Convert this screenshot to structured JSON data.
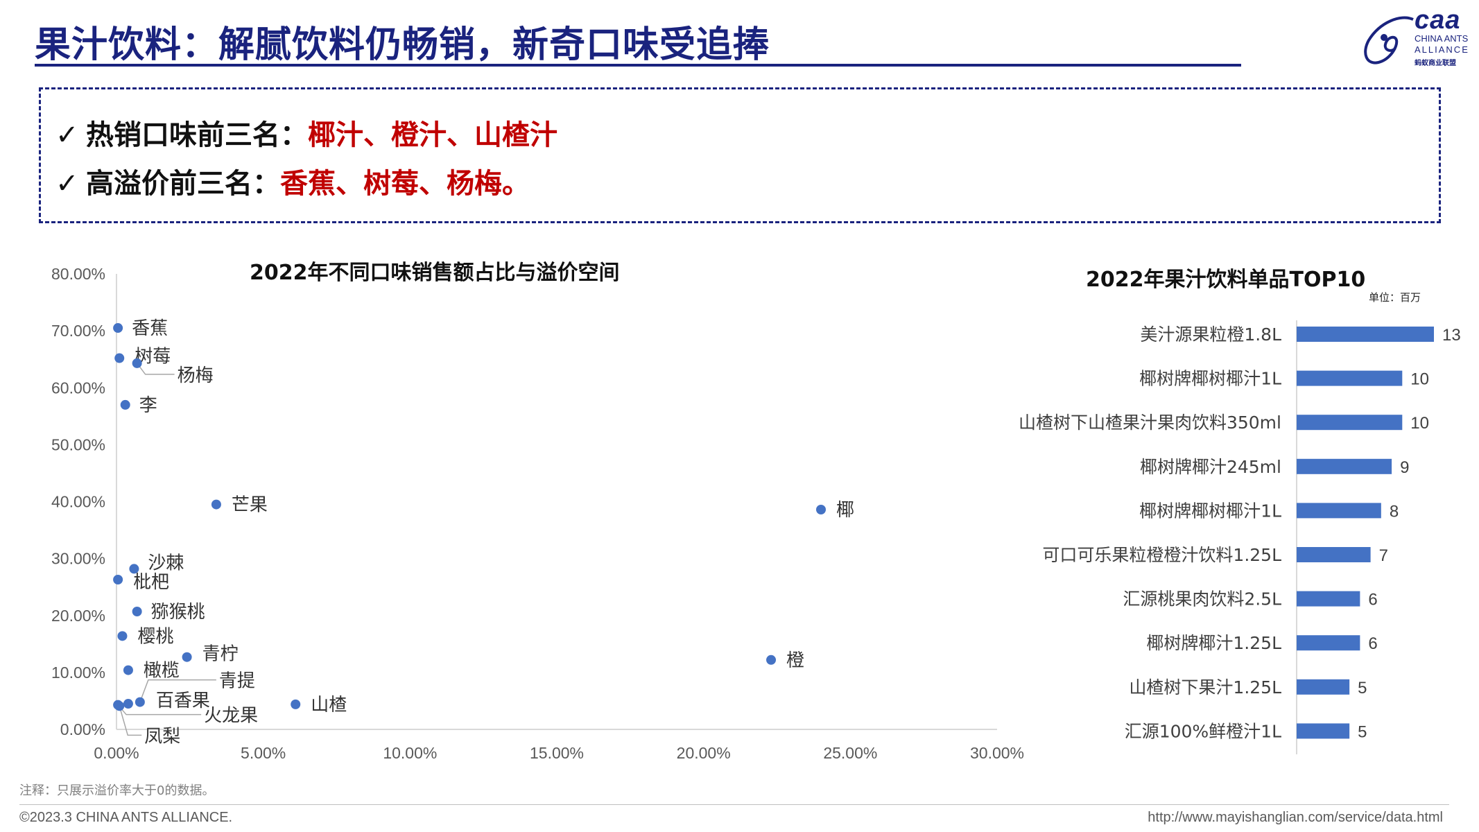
{
  "header": {
    "title": "果汁饮料：解腻饮料仍畅销，新奇口味受追捧",
    "logo_text": "caa",
    "logo_line1": "CHINA ANTS",
    "logo_line2": "ALLIANCE",
    "logo_line3": "蚂蚁商业联盟"
  },
  "highlights": [
    {
      "check": "✓",
      "label": "热销口味前三名：",
      "value": "椰汁、橙汁、山楂汁"
    },
    {
      "check": "✓",
      "label": "高溢价前三名：",
      "value": "香蕉、树莓、杨梅。"
    }
  ],
  "colors": {
    "accent": "#1a237e",
    "highlight_red": "#c00000",
    "point": "#4472c4",
    "bar": "#4472c4"
  },
  "chart_data": [
    {
      "type": "scatter",
      "title": "2022年不同口味销售额占比与溢价空间",
      "xlabel": "",
      "ylabel": "",
      "xlim": [
        0,
        30
      ],
      "ylim": [
        0,
        80
      ],
      "x_ticks": [
        "0.00%",
        "5.00%",
        "10.00%",
        "15.00%",
        "20.00%",
        "25.00%",
        "30.00%"
      ],
      "y_ticks": [
        "0.00%",
        "10.00%",
        "20.00%",
        "30.00%",
        "40.00%",
        "50.00%",
        "60.00%",
        "70.00%",
        "80.00%"
      ],
      "points": [
        {
          "label": "香蕉",
          "x": 0.05,
          "y": 70.5
        },
        {
          "label": "树莓",
          "x": 0.1,
          "y": 65.2
        },
        {
          "label": "杨梅",
          "x": 0.7,
          "y": 64.3
        },
        {
          "label": "李",
          "x": 0.3,
          "y": 57.0
        },
        {
          "label": "芒果",
          "x": 3.4,
          "y": 39.5
        },
        {
          "label": "椰",
          "x": 24.0,
          "y": 38.6
        },
        {
          "label": "沙棘",
          "x": 0.6,
          "y": 28.2
        },
        {
          "label": "枇杷",
          "x": 0.05,
          "y": 26.3
        },
        {
          "label": "猕猴桃",
          "x": 0.7,
          "y": 20.7
        },
        {
          "label": "樱桃",
          "x": 0.2,
          "y": 16.4
        },
        {
          "label": "青柠",
          "x": 2.4,
          "y": 12.7
        },
        {
          "label": "橙",
          "x": 22.3,
          "y": 12.2
        },
        {
          "label": "橄榄",
          "x": 0.4,
          "y": 10.4
        },
        {
          "label": "青提",
          "x": 0.8,
          "y": 4.8
        },
        {
          "label": "百香果",
          "x": 0.4,
          "y": 4.5
        },
        {
          "label": "山楂",
          "x": 6.1,
          "y": 4.4
        },
        {
          "label": "火龙果",
          "x": 0.05,
          "y": 4.3
        },
        {
          "label": "凤梨",
          "x": 0.1,
          "y": 4.1
        }
      ]
    },
    {
      "type": "bar",
      "orientation": "horizontal",
      "title": "2022年果汁饮料单品TOP10",
      "unit": "单位：百万",
      "xlim": [
        0,
        13
      ],
      "categories": [
        "美汁源果粒橙1.8L",
        "椰树牌椰树椰汁1L",
        "山楂树下山楂果汁果肉饮料350ml",
        "椰树牌椰汁245ml",
        "椰树牌椰树椰汁1L",
        "可口可乐果粒橙橙汁饮料1.25L",
        "汇源桃果肉饮料2.5L",
        "椰树牌椰汁1.25L",
        "山楂树下果汁1.25L",
        "汇源100%鲜橙汁1L"
      ],
      "values": [
        13,
        10,
        10,
        9,
        8,
        7,
        6,
        6,
        5,
        5
      ],
      "value_labels": [
        "13",
        "10",
        "10",
        "9",
        "8",
        "7",
        "6",
        "6",
        "5",
        "5"
      ]
    }
  ],
  "footer": {
    "note": "注释：只展示溢价率大于0的数据。",
    "copyright": "©2023.3 CHINA ANTS ALLIANCE.",
    "url": "http://www.mayishanglian.com/service/data.html"
  }
}
